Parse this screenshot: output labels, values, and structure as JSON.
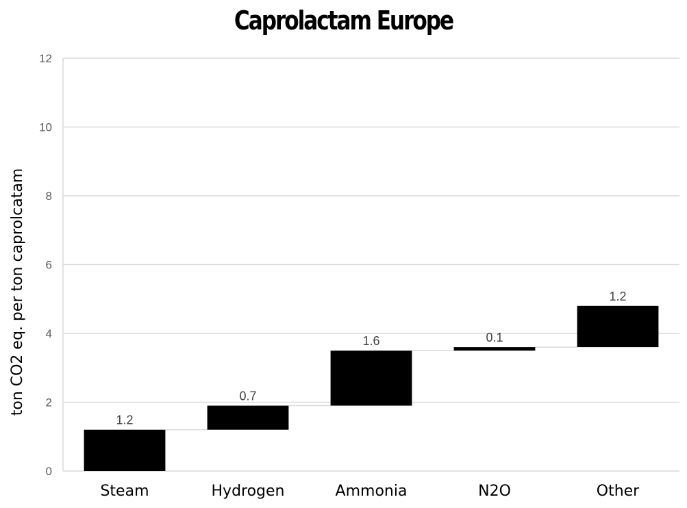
{
  "chart_data": {
    "type": "bar",
    "subtype": "waterfall",
    "title": "Caprolactam Europe",
    "xlabel": "",
    "ylabel": "ton CO2 eq. per ton caprolcatam",
    "ylim": [
      0,
      12
    ],
    "yticks": [
      0,
      2,
      4,
      6,
      8,
      10,
      12
    ],
    "grid": true,
    "legend": "none",
    "categories": [
      "Steam",
      "Hydrogen",
      "Ammonia",
      "N2O",
      "Other"
    ],
    "values": [
      1.2,
      0.7,
      1.6,
      0.1,
      1.2
    ],
    "value_labels": [
      "1.2",
      "0.7",
      "1.6",
      "0.1",
      "1.2"
    ],
    "bar_color": "#000000",
    "grid_color": "#d9d9d9",
    "connector_color": "#d9d9d9"
  }
}
